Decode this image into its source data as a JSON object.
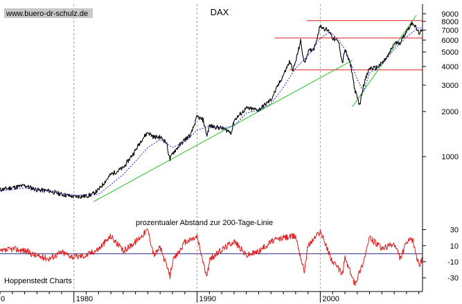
{
  "watermark": "www.buero-dr-schulz.de",
  "source_label": "Hoppenstedt Charts",
  "chart_data": [
    {
      "type": "line",
      "title": "DAX",
      "scale": "log",
      "ylim": [
        480,
        10000
      ],
      "xlim": [
        1974,
        2008.3
      ],
      "y_ticks": [
        {
          "value": 9000,
          "label": "9000"
        },
        {
          "value": 8000,
          "label": "8000"
        },
        {
          "value": 7000,
          "label": "7000"
        },
        {
          "value": 6000,
          "label": "6000"
        },
        {
          "value": 5000,
          "label": "5000"
        },
        {
          "value": 4000,
          "label": "4000"
        },
        {
          "value": 3000,
          "label": "3000"
        },
        {
          "value": 2000,
          "label": "2000"
        },
        {
          "value": 1000,
          "label": "1000"
        }
      ],
      "x_ticks": [
        {
          "value": 1980,
          "label": "1980"
        },
        {
          "value": 1990,
          "label": "1990"
        },
        {
          "value": 2000,
          "label": "2000"
        }
      ],
      "x_edge_label": "0",
      "vertical_gridlines": [
        1980,
        1990,
        2000
      ],
      "series": [
        {
          "color": "#000000",
          "style": "solid",
          "points": [
            [
              1974.0,
              600
            ],
            [
              1975.0,
              620
            ],
            [
              1976.0,
              640
            ],
            [
              1976.5,
              620
            ],
            [
              1977.0,
              600
            ],
            [
              1978.0,
              590
            ],
            [
              1979.0,
              560
            ],
            [
              1980.0,
              540
            ],
            [
              1981.0,
              545
            ],
            [
              1981.5,
              560
            ],
            [
              1982.0,
              600
            ],
            [
              1983.0,
              760
            ],
            [
              1984.0,
              840
            ],
            [
              1985.0,
              1100
            ],
            [
              1985.5,
              1300
            ],
            [
              1986.0,
              1450
            ],
            [
              1986.5,
              1350
            ],
            [
              1987.0,
              1350
            ],
            [
              1987.5,
              1250
            ],
            [
              1987.8,
              950
            ],
            [
              1988.0,
              1050
            ],
            [
              1989.0,
              1300
            ],
            [
              1989.5,
              1400
            ],
            [
              1990.0,
              1850
            ],
            [
              1990.5,
              1750
            ],
            [
              1990.8,
              1380
            ],
            [
              1991.0,
              1600
            ],
            [
              1992.0,
              1550
            ],
            [
              1992.8,
              1450
            ],
            [
              1993.0,
              1750
            ],
            [
              1994.0,
              2100
            ],
            [
              1995.0,
              2050
            ],
            [
              1996.0,
              2400
            ],
            [
              1997.0,
              3500
            ],
            [
              1997.5,
              4300
            ],
            [
              1997.8,
              3800
            ],
            [
              1998.0,
              4300
            ],
            [
              1998.4,
              5900
            ],
            [
              1998.7,
              4200
            ],
            [
              1999.0,
              5000
            ],
            [
              1999.5,
              5300
            ],
            [
              2000.0,
              7500
            ],
            [
              2000.3,
              7200
            ],
            [
              2000.8,
              6800
            ],
            [
              2001.0,
              6200
            ],
            [
              2001.5,
              5800
            ],
            [
              2001.8,
              4200
            ],
            [
              2002.0,
              5200
            ],
            [
              2002.5,
              4000
            ],
            [
              2002.8,
              2800
            ],
            [
              2003.2,
              2200
            ],
            [
              2003.5,
              3000
            ],
            [
              2004.0,
              3900
            ],
            [
              2004.5,
              3900
            ],
            [
              2005.0,
              4200
            ],
            [
              2005.5,
              4700
            ],
            [
              2006.0,
              5700
            ],
            [
              2006.5,
              5800
            ],
            [
              2007.0,
              6900
            ],
            [
              2007.5,
              7900
            ],
            [
              2008.0,
              6700
            ],
            [
              2008.3,
              6900
            ]
          ]
        },
        {
          "color": "#1a1ad0",
          "style": "dashed",
          "points": [
            [
              1974.0,
              590
            ],
            [
              1976.0,
              615
            ],
            [
              1978.0,
              585
            ],
            [
              1980.0,
              550
            ],
            [
              1982.0,
              560
            ],
            [
              1983.0,
              650
            ],
            [
              1984.0,
              760
            ],
            [
              1985.0,
              930
            ],
            [
              1986.0,
              1150
            ],
            [
              1987.0,
              1300
            ],
            [
              1988.0,
              1150
            ],
            [
              1989.0,
              1250
            ],
            [
              1990.0,
              1500
            ],
            [
              1991.0,
              1600
            ],
            [
              1992.0,
              1550
            ],
            [
              1993.0,
              1600
            ],
            [
              1994.0,
              1950
            ],
            [
              1995.0,
              2050
            ],
            [
              1996.0,
              2250
            ],
            [
              1997.0,
              2900
            ],
            [
              1998.0,
              3900
            ],
            [
              1999.0,
              4700
            ],
            [
              2000.0,
              6200
            ],
            [
              2000.8,
              6800
            ],
            [
              2001.5,
              6000
            ],
            [
              2002.0,
              5200
            ],
            [
              2003.0,
              3300
            ],
            [
              2003.5,
              2700
            ],
            [
              2004.0,
              3600
            ],
            [
              2005.0,
              4100
            ],
            [
              2006.0,
              5200
            ],
            [
              2007.0,
              6300
            ],
            [
              2008.0,
              7300
            ],
            [
              2008.3,
              7200
            ]
          ]
        }
      ],
      "reference_lines": [
        {
          "color": "#e01818",
          "kind": "horizontal",
          "value": 8100,
          "x_from": 1998.9,
          "x_to": 2008.3
        },
        {
          "color": "#e01818",
          "kind": "horizontal",
          "value": 6200,
          "x_from": 1996.3,
          "x_to": 2008.3
        },
        {
          "color": "#e01818",
          "kind": "horizontal",
          "value": 3800,
          "x_from": 1997.5,
          "x_to": 2008.3
        },
        {
          "color": "#22c022",
          "kind": "trend",
          "points": [
            [
              1981.6,
              500
            ],
            [
              2002.6,
              4400
            ]
          ]
        },
        {
          "color": "#22c022",
          "kind": "trend",
          "points": [
            [
              2002.6,
              2150
            ],
            [
              2007.8,
              8800
            ]
          ]
        }
      ]
    },
    {
      "type": "line",
      "title": "prozentualer Abstand zur 200-Tage-Linie",
      "ylim": [
        -42,
        40
      ],
      "zero_line": 0,
      "y_ticks": [
        {
          "value": 30,
          "label": "30"
        },
        {
          "value": 10,
          "label": "10"
        },
        {
          "value": -10,
          "label": "-10"
        },
        {
          "value": -30,
          "label": "-30"
        }
      ],
      "series": [
        {
          "color": "#e01818",
          "style": "solid",
          "points": [
            [
              1974.0,
              2
            ],
            [
              1975.0,
              6
            ],
            [
              1976.0,
              4
            ],
            [
              1977.0,
              -3
            ],
            [
              1978.0,
              -6
            ],
            [
              1979.0,
              2
            ],
            [
              1980.0,
              -4
            ],
            [
              1981.0,
              -2
            ],
            [
              1982.0,
              6
            ],
            [
              1983.0,
              22
            ],
            [
              1984.0,
              3
            ],
            [
              1985.0,
              15
            ],
            [
              1986.0,
              30
            ],
            [
              1986.5,
              -2
            ],
            [
              1987.0,
              8
            ],
            [
              1987.8,
              -28
            ],
            [
              1988.0,
              -10
            ],
            [
              1989.0,
              14
            ],
            [
              1990.0,
              21
            ],
            [
              1990.8,
              -30
            ],
            [
              1991.0,
              -8
            ],
            [
              1992.0,
              5
            ],
            [
              1993.0,
              16
            ],
            [
              1994.0,
              -2
            ],
            [
              1995.0,
              3
            ],
            [
              1996.0,
              15
            ],
            [
              1997.0,
              20
            ],
            [
              1998.0,
              22
            ],
            [
              1998.7,
              -22
            ],
            [
              1999.0,
              10
            ],
            [
              2000.0,
              28
            ],
            [
              2001.0,
              -10
            ],
            [
              2001.8,
              -25
            ],
            [
              2002.0,
              -5
            ],
            [
              2002.8,
              -38
            ],
            [
              2003.5,
              -10
            ],
            [
              2004.0,
              20
            ],
            [
              2005.0,
              6
            ],
            [
              2006.0,
              12
            ],
            [
              2006.5,
              -6
            ],
            [
              2007.0,
              14
            ],
            [
              2007.5,
              18
            ],
            [
              2008.0,
              -15
            ],
            [
              2008.3,
              -5
            ]
          ]
        }
      ]
    }
  ]
}
